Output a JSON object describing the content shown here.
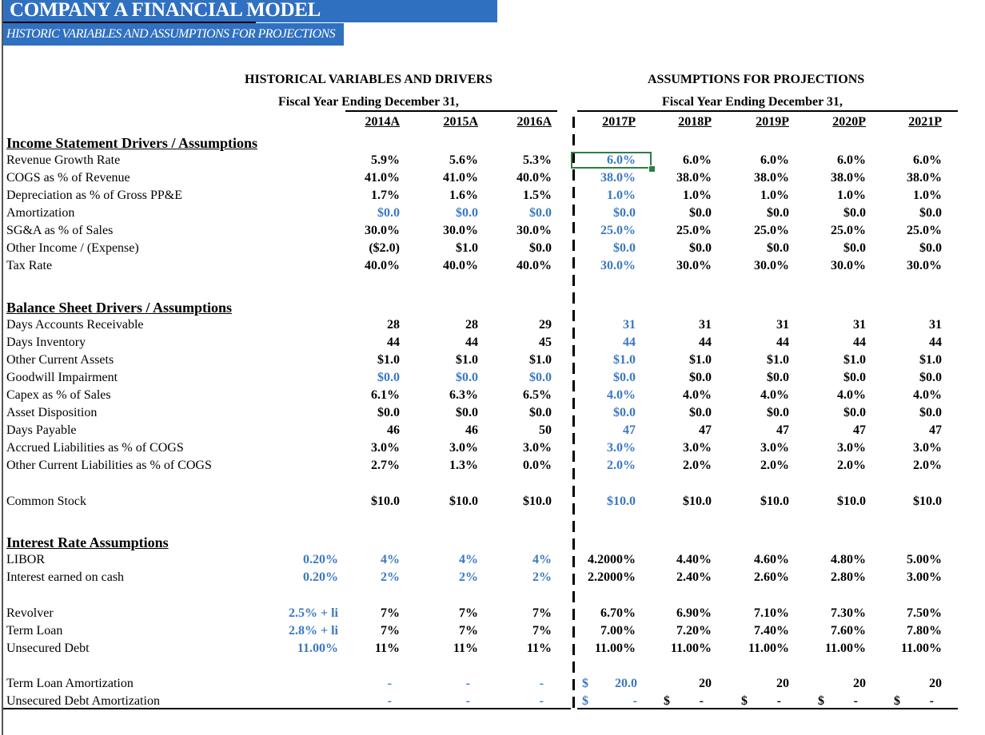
{
  "title": "COMPANY A FINANCIAL MODEL",
  "subtitle": "HISTORIC VARIABLES AND ASSUMPTIONS FOR PROJECTIONS",
  "colors": {
    "title_bg": "#3070C0",
    "input_blue": "#3A78C2",
    "selection": "#2E7D46"
  },
  "historical_header": "HISTORICAL VARIABLES AND DRIVERS",
  "projection_header": "ASSUMPTIONS FOR PROJECTIONS",
  "fiscal_year_hist": "Fiscal Year Ending December 31,",
  "fiscal_year_proj": "Fiscal Year Ending December 31,",
  "years": [
    "2014A",
    "2015A",
    "2016A",
    "2017P",
    "2018P",
    "2019P",
    "2020P",
    "2021P"
  ],
  "selected_cell": "2017P Revenue Growth Rate",
  "sections": [
    {
      "title": "Income Statement Drivers / Assumptions",
      "rows": [
        {
          "label": "Revenue Growth Rate",
          "values": [
            "5.9%",
            "5.6%",
            "5.3%",
            "6.0%",
            "6.0%",
            "6.0%",
            "6.0%",
            "6.0%"
          ],
          "blue": [
            3
          ]
        },
        {
          "label": "COGS as % of Revenue",
          "values": [
            "41.0%",
            "41.0%",
            "40.0%",
            "38.0%",
            "38.0%",
            "38.0%",
            "38.0%",
            "38.0%"
          ],
          "blue": [
            3
          ]
        },
        {
          "label": "Depreciation as % of Gross PP&E",
          "values": [
            "1.7%",
            "1.6%",
            "1.5%",
            "1.0%",
            "1.0%",
            "1.0%",
            "1.0%",
            "1.0%"
          ],
          "blue": [
            3
          ]
        },
        {
          "label": "Amortization",
          "values": [
            "$0.0",
            "$0.0",
            "$0.0",
            "$0.0",
            "$0.0",
            "$0.0",
            "$0.0",
            "$0.0"
          ],
          "blue": [
            0,
            1,
            2,
            3
          ]
        },
        {
          "label": "SG&A as % of Sales",
          "values": [
            "30.0%",
            "30.0%",
            "30.0%",
            "25.0%",
            "25.0%",
            "25.0%",
            "25.0%",
            "25.0%"
          ],
          "blue": [
            3
          ]
        },
        {
          "label": "Other Income / (Expense)",
          "values": [
            "($2.0)",
            "$1.0",
            "$0.0",
            "$0.0",
            "$0.0",
            "$0.0",
            "$0.0",
            "$0.0"
          ],
          "blue": [
            3
          ]
        },
        {
          "label": "Tax Rate",
          "values": [
            "40.0%",
            "40.0%",
            "40.0%",
            "30.0%",
            "30.0%",
            "30.0%",
            "30.0%",
            "30.0%"
          ],
          "blue": [
            3
          ]
        }
      ]
    },
    {
      "title": "Balance Sheet Drivers / Assumptions",
      "rows": [
        {
          "label": "Days Accounts Receivable",
          "values": [
            "28",
            "28",
            "29",
            "31",
            "31",
            "31",
            "31",
            "31"
          ],
          "blue": [
            3
          ]
        },
        {
          "label": "Days Inventory",
          "values": [
            "44",
            "44",
            "45",
            "44",
            "44",
            "44",
            "44",
            "44"
          ],
          "blue": [
            3
          ]
        },
        {
          "label": "Other Current Assets",
          "values": [
            "$1.0",
            "$1.0",
            "$1.0",
            "$1.0",
            "$1.0",
            "$1.0",
            "$1.0",
            "$1.0"
          ],
          "blue": [
            3
          ]
        },
        {
          "label": "Goodwill Impairment",
          "values": [
            "$0.0",
            "$0.0",
            "$0.0",
            "$0.0",
            "$0.0",
            "$0.0",
            "$0.0",
            "$0.0"
          ],
          "blue": [
            0,
            1,
            2,
            3
          ]
        },
        {
          "label": "Capex as % of Sales",
          "values": [
            "6.1%",
            "6.3%",
            "6.5%",
            "4.0%",
            "4.0%",
            "4.0%",
            "4.0%",
            "4.0%"
          ],
          "blue": [
            3
          ]
        },
        {
          "label": "Asset Disposition",
          "values": [
            "$0.0",
            "$0.0",
            "$0.0",
            "$0.0",
            "$0.0",
            "$0.0",
            "$0.0",
            "$0.0"
          ],
          "blue": [
            3
          ]
        },
        {
          "label": "Days Payable",
          "values": [
            "46",
            "46",
            "50",
            "47",
            "47",
            "47",
            "47",
            "47"
          ],
          "blue": [
            3
          ]
        },
        {
          "label": "Accrued Liabilities as % of COGS",
          "values": [
            "3.0%",
            "3.0%",
            "3.0%",
            "3.0%",
            "3.0%",
            "3.0%",
            "3.0%",
            "3.0%"
          ],
          "blue": [
            3
          ]
        },
        {
          "label": "Other Current Liabilities as % of COGS",
          "values": [
            "2.7%",
            "1.3%",
            "0.0%",
            "2.0%",
            "2.0%",
            "2.0%",
            "2.0%",
            "2.0%"
          ],
          "blue": [
            3
          ]
        }
      ]
    },
    {
      "title": "",
      "rows": [
        {
          "label": "Common Stock",
          "values": [
            "$10.0",
            "$10.0",
            "$10.0",
            "$10.0",
            "$10.0",
            "$10.0",
            "$10.0",
            "$10.0"
          ],
          "blue": [
            3
          ]
        }
      ]
    },
    {
      "title": "Interest Rate Assumptions",
      "rows": [
        {
          "label": "LIBOR",
          "spread": "0.20%",
          "values": [
            "4%",
            "4%",
            "4%",
            "4.2000%",
            "4.40%",
            "4.60%",
            "4.80%",
            "5.00%"
          ],
          "blue": [
            0,
            1,
            2
          ]
        },
        {
          "label": "Interest earned on cash",
          "spread": "0.20%",
          "values": [
            "2%",
            "2%",
            "2%",
            "2.2000%",
            "2.40%",
            "2.60%",
            "2.80%",
            "3.00%"
          ],
          "blue": [
            0,
            1,
            2
          ]
        }
      ]
    },
    {
      "title": "",
      "rows": [
        {
          "label": "Revolver",
          "spread": "2.5% + li",
          "values": [
            "7%",
            "7%",
            "7%",
            "6.70%",
            "6.90%",
            "7.10%",
            "7.30%",
            "7.50%"
          ],
          "blue": []
        },
        {
          "label": "Term Loan",
          "spread": "2.8% + li",
          "values": [
            "7%",
            "7%",
            "7%",
            "7.00%",
            "7.20%",
            "7.40%",
            "7.60%",
            "7.80%"
          ],
          "blue": []
        },
        {
          "label": "Unsecured Debt",
          "spread": "11.00%",
          "values": [
            "11%",
            "11%",
            "11%",
            "11.00%",
            "11.00%",
            "11.00%",
            "11.00%",
            "11.00%"
          ],
          "blue": []
        }
      ]
    },
    {
      "title": "",
      "rows": [
        {
          "label": "Term Loan Amortization",
          "values": [
            "-",
            "-",
            "-",
            "$ 20.0",
            "20",
            "20",
            "20",
            "20"
          ],
          "blue": [
            0,
            1,
            2,
            3
          ]
        },
        {
          "label": "Unsecured Debt Amortization",
          "values": [
            "-",
            "-",
            "-",
            "$ -",
            "$ -",
            "$ -",
            "$ -",
            "$ -"
          ],
          "blue": [
            0,
            1,
            2,
            3
          ]
        }
      ]
    }
  ]
}
